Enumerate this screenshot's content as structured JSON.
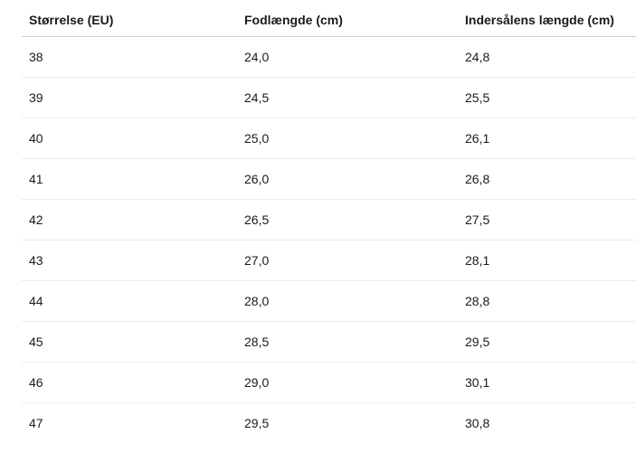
{
  "table": {
    "headers": [
      "Størrelse (EU)",
      "Fodlængde (cm)",
      "Indersålens længde (cm)"
    ],
    "rows": [
      [
        "38",
        "24,0",
        "24,8"
      ],
      [
        "39",
        "24,5",
        "25,5"
      ],
      [
        "40",
        "25,0",
        "26,1"
      ],
      [
        "41",
        "26,0",
        "26,8"
      ],
      [
        "42",
        "26,5",
        "27,5"
      ],
      [
        "43",
        "27,0",
        "28,1"
      ],
      [
        "44",
        "28,0",
        "28,8"
      ],
      [
        "45",
        "28,5",
        "29,5"
      ],
      [
        "46",
        "29,0",
        "30,1"
      ],
      [
        "47",
        "29,5",
        "30,8"
      ]
    ]
  }
}
